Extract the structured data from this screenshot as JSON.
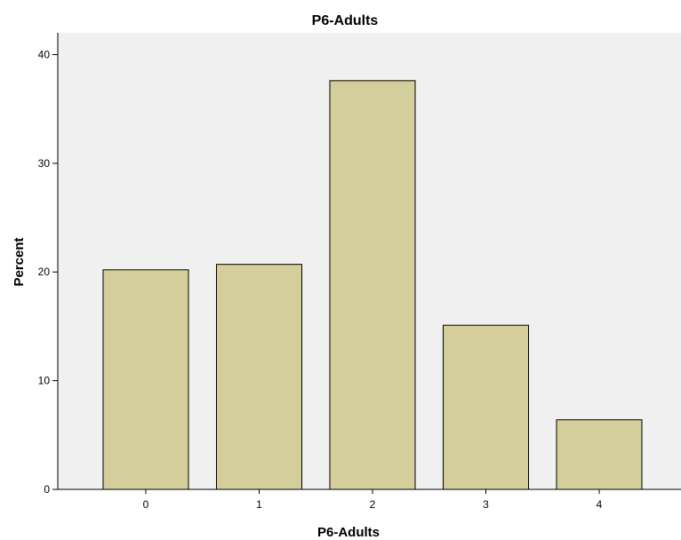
{
  "chart_data": {
    "type": "bar",
    "title": "P6-Adults",
    "xlabel": "P6-Adults",
    "ylabel": "Percent",
    "categories": [
      "0",
      "1",
      "2",
      "3",
      "4"
    ],
    "values": [
      20.2,
      20.7,
      37.6,
      15.1,
      6.4
    ],
    "ylim": [
      0,
      42
    ],
    "yticks": [
      0,
      10,
      20,
      30,
      40
    ],
    "ytick_labels": [
      "0",
      "10",
      "20",
      "30",
      "40"
    ],
    "grid": false,
    "colors": {
      "plot_background": "#f0f0f0",
      "bar_fill": "#d3ce9a",
      "bar_stroke": "#000000",
      "axis": "#000000"
    }
  }
}
